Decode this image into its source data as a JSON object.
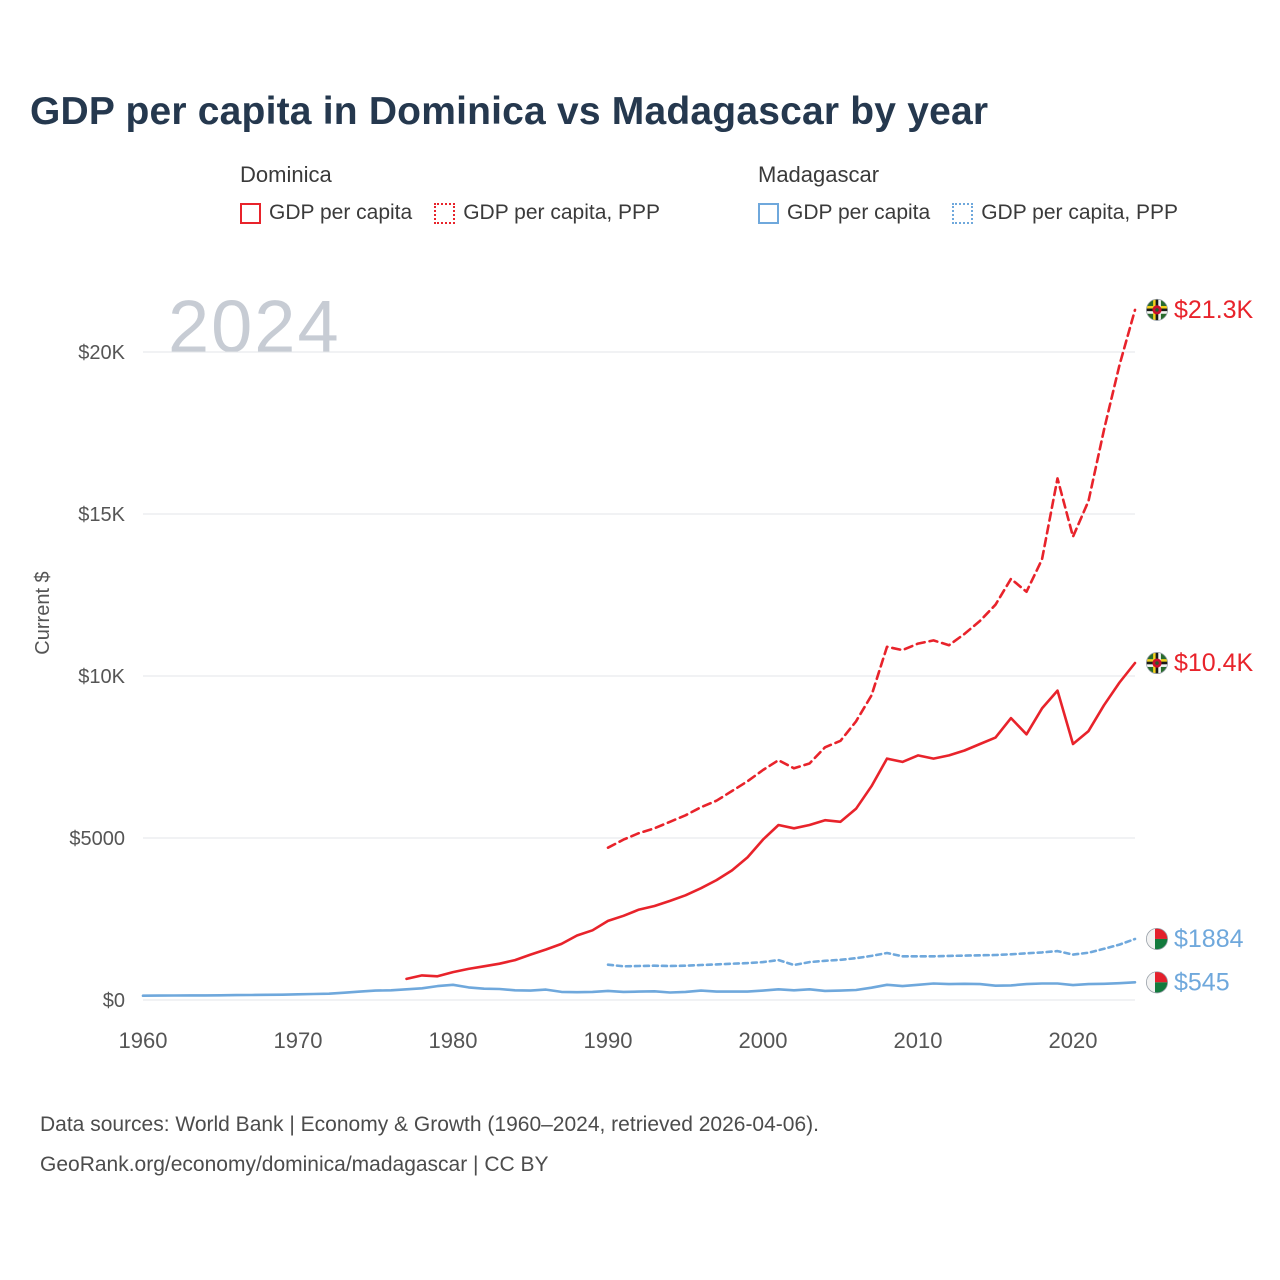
{
  "title": "GDP per capita in Dominica vs Madagascar by year",
  "legend": {
    "groups": [
      {
        "title": "Dominica",
        "items": [
          {
            "label": "GDP per capita",
            "style": "solid",
            "color": "#e8232b"
          },
          {
            "label": "GDP per capita, PPP",
            "style": "dotted",
            "color": "#e8232b"
          }
        ]
      },
      {
        "title": "Madagascar",
        "items": [
          {
            "label": "GDP per capita",
            "style": "solid",
            "color": "#6fa8dc"
          },
          {
            "label": "GDP per capita, PPP",
            "style": "dotted",
            "color": "#6fa8dc"
          }
        ]
      }
    ]
  },
  "chart": {
    "watermark": "2024",
    "y_axis_title": "Current $"
  },
  "chart_data": {
    "type": "line",
    "title": "GDP per capita in Dominica vs Madagascar by year",
    "xlabel": "",
    "ylabel": "Current $",
    "xlim": [
      1958,
      2025
    ],
    "ylim": [
      0,
      21500
    ],
    "grid": "horizontal",
    "legend_position": "top",
    "y_ticks": [
      {
        "value": 0,
        "label": "$0"
      },
      {
        "value": 5000,
        "label": "$5000"
      },
      {
        "value": 10000,
        "label": "$10K"
      },
      {
        "value": 15000,
        "label": "$15K"
      },
      {
        "value": 20000,
        "label": "$20K"
      }
    ],
    "x_ticks": [
      {
        "value": 1960,
        "label": "1960"
      },
      {
        "value": 1970,
        "label": "1970"
      },
      {
        "value": 1980,
        "label": "1980"
      },
      {
        "value": 1990,
        "label": "1990"
      },
      {
        "value": 2000,
        "label": "2000"
      },
      {
        "value": 2010,
        "label": "2010"
      },
      {
        "value": 2020,
        "label": "2020"
      }
    ],
    "series": [
      {
        "id": "dominica-gdp-ppp",
        "name": "Dominica GDP per capita, PPP",
        "group": "Dominica",
        "color": "#e8232b",
        "dash": "8 5",
        "flag": "dominica",
        "end_label": "$21.3K",
        "points": [
          [
            1990,
            4700
          ],
          [
            1991,
            4950
          ],
          [
            1992,
            5150
          ],
          [
            1993,
            5300
          ],
          [
            1994,
            5500
          ],
          [
            1995,
            5700
          ],
          [
            1996,
            5950
          ],
          [
            1997,
            6150
          ],
          [
            1998,
            6450
          ],
          [
            1999,
            6750
          ],
          [
            2000,
            7100
          ],
          [
            2001,
            7400
          ],
          [
            2002,
            7150
          ],
          [
            2003,
            7300
          ],
          [
            2004,
            7800
          ],
          [
            2005,
            8000
          ],
          [
            2006,
            8600
          ],
          [
            2007,
            9400
          ],
          [
            2008,
            10900
          ],
          [
            2009,
            10800
          ],
          [
            2010,
            11000
          ],
          [
            2011,
            11100
          ],
          [
            2012,
            10950
          ],
          [
            2013,
            11300
          ],
          [
            2014,
            11700
          ],
          [
            2015,
            12200
          ],
          [
            2016,
            13000
          ],
          [
            2017,
            12600
          ],
          [
            2018,
            13600
          ],
          [
            2019,
            16100
          ],
          [
            2020,
            14300
          ],
          [
            2021,
            15400
          ],
          [
            2022,
            17600
          ],
          [
            2023,
            19600
          ],
          [
            2024,
            21300
          ]
        ]
      },
      {
        "id": "dominica-gdp",
        "name": "Dominica GDP per capita",
        "group": "Dominica",
        "color": "#e8232b",
        "dash": null,
        "flag": "dominica",
        "end_label": "$10.4K",
        "points": [
          [
            1977,
            650
          ],
          [
            1978,
            760
          ],
          [
            1979,
            730
          ],
          [
            1980,
            860
          ],
          [
            1981,
            960
          ],
          [
            1982,
            1040
          ],
          [
            1983,
            1120
          ],
          [
            1984,
            1230
          ],
          [
            1985,
            1400
          ],
          [
            1986,
            1560
          ],
          [
            1987,
            1730
          ],
          [
            1988,
            1990
          ],
          [
            1989,
            2150
          ],
          [
            1990,
            2440
          ],
          [
            1991,
            2600
          ],
          [
            1992,
            2790
          ],
          [
            1993,
            2900
          ],
          [
            1994,
            3060
          ],
          [
            1995,
            3230
          ],
          [
            1996,
            3450
          ],
          [
            1997,
            3700
          ],
          [
            1998,
            4000
          ],
          [
            1999,
            4400
          ],
          [
            2000,
            4950
          ],
          [
            2001,
            5400
          ],
          [
            2002,
            5300
          ],
          [
            2003,
            5400
          ],
          [
            2004,
            5550
          ],
          [
            2005,
            5500
          ],
          [
            2006,
            5900
          ],
          [
            2007,
            6600
          ],
          [
            2008,
            7450
          ],
          [
            2009,
            7350
          ],
          [
            2010,
            7550
          ],
          [
            2011,
            7450
          ],
          [
            2012,
            7550
          ],
          [
            2013,
            7700
          ],
          [
            2014,
            7900
          ],
          [
            2015,
            8100
          ],
          [
            2016,
            8700
          ],
          [
            2017,
            8200
          ],
          [
            2018,
            9000
          ],
          [
            2019,
            9550
          ],
          [
            2020,
            7900
          ],
          [
            2021,
            8300
          ],
          [
            2022,
            9100
          ],
          [
            2023,
            9800
          ],
          [
            2024,
            10400
          ]
        ]
      },
      {
        "id": "madagascar-gdp-ppp",
        "name": "Madagascar GDP per capita, PPP",
        "group": "Madagascar",
        "color": "#6fa8dc",
        "dash": "5 4",
        "flag": "madagascar",
        "end_label": "$1884",
        "points": [
          [
            1990,
            1090
          ],
          [
            1991,
            1040
          ],
          [
            1992,
            1050
          ],
          [
            1993,
            1060
          ],
          [
            1994,
            1050
          ],
          [
            1995,
            1060
          ],
          [
            1996,
            1080
          ],
          [
            1997,
            1100
          ],
          [
            1998,
            1120
          ],
          [
            1999,
            1140
          ],
          [
            2000,
            1170
          ],
          [
            2001,
            1230
          ],
          [
            2002,
            1080
          ],
          [
            2003,
            1170
          ],
          [
            2004,
            1210
          ],
          [
            2005,
            1240
          ],
          [
            2006,
            1290
          ],
          [
            2007,
            1360
          ],
          [
            2008,
            1450
          ],
          [
            2009,
            1350
          ],
          [
            2010,
            1350
          ],
          [
            2011,
            1350
          ],
          [
            2012,
            1360
          ],
          [
            2013,
            1370
          ],
          [
            2014,
            1380
          ],
          [
            2015,
            1390
          ],
          [
            2016,
            1410
          ],
          [
            2017,
            1440
          ],
          [
            2018,
            1470
          ],
          [
            2019,
            1510
          ],
          [
            2020,
            1400
          ],
          [
            2021,
            1460
          ],
          [
            2022,
            1580
          ],
          [
            2023,
            1710
          ],
          [
            2024,
            1884
          ]
        ]
      },
      {
        "id": "madagascar-gdp",
        "name": "Madagascar GDP per capita",
        "group": "Madagascar",
        "color": "#6fa8dc",
        "dash": null,
        "flag": "madagascar",
        "end_label": "$545",
        "points": [
          [
            1960,
            132
          ],
          [
            1961,
            136
          ],
          [
            1962,
            139
          ],
          [
            1963,
            141
          ],
          [
            1964,
            143
          ],
          [
            1965,
            145
          ],
          [
            1966,
            150
          ],
          [
            1967,
            155
          ],
          [
            1968,
            160
          ],
          [
            1969,
            165
          ],
          [
            1970,
            175
          ],
          [
            1971,
            185
          ],
          [
            1972,
            195
          ],
          [
            1973,
            225
          ],
          [
            1974,
            260
          ],
          [
            1975,
            290
          ],
          [
            1976,
            300
          ],
          [
            1977,
            330
          ],
          [
            1978,
            360
          ],
          [
            1979,
            430
          ],
          [
            1980,
            470
          ],
          [
            1981,
            390
          ],
          [
            1982,
            350
          ],
          [
            1983,
            340
          ],
          [
            1984,
            300
          ],
          [
            1985,
            290
          ],
          [
            1986,
            320
          ],
          [
            1987,
            250
          ],
          [
            1988,
            240
          ],
          [
            1989,
            250
          ],
          [
            1990,
            280
          ],
          [
            1991,
            250
          ],
          [
            1992,
            260
          ],
          [
            1993,
            270
          ],
          [
            1994,
            230
          ],
          [
            1995,
            250
          ],
          [
            1996,
            290
          ],
          [
            1997,
            260
          ],
          [
            1998,
            260
          ],
          [
            1999,
            260
          ],
          [
            2000,
            290
          ],
          [
            2001,
            330
          ],
          [
            2002,
            300
          ],
          [
            2003,
            330
          ],
          [
            2004,
            280
          ],
          [
            2005,
            290
          ],
          [
            2006,
            310
          ],
          [
            2007,
            380
          ],
          [
            2008,
            470
          ],
          [
            2009,
            430
          ],
          [
            2010,
            470
          ],
          [
            2011,
            510
          ],
          [
            2012,
            490
          ],
          [
            2013,
            500
          ],
          [
            2014,
            490
          ],
          [
            2015,
            440
          ],
          [
            2016,
            450
          ],
          [
            2017,
            490
          ],
          [
            2018,
            510
          ],
          [
            2019,
            510
          ],
          [
            2020,
            460
          ],
          [
            2021,
            490
          ],
          [
            2022,
            500
          ],
          [
            2023,
            520
          ],
          [
            2024,
            545
          ]
        ]
      }
    ]
  },
  "footer": {
    "line1": "Data sources: World Bank | Economy & Growth (1960–2024, retrieved 2026-04-06).",
    "line2": "GeoRank.org/economy/dominica/madagascar | CC BY"
  }
}
